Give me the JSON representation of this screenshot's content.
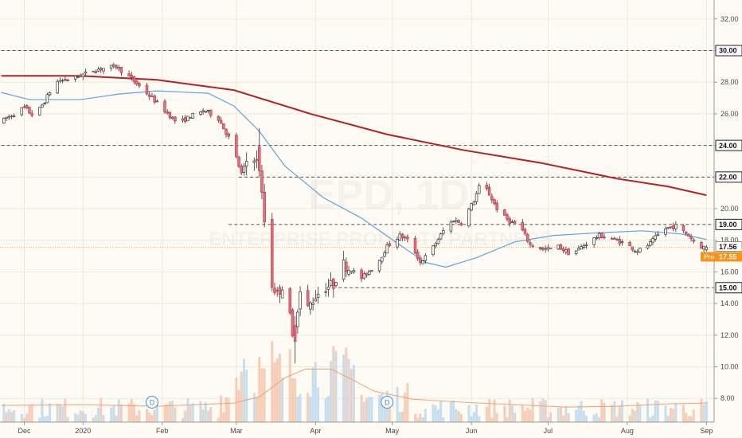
{
  "chart_data": {
    "type": "candlestick",
    "watermark": {
      "symbol": "EPD, 1D",
      "name": "ENTERPRISE PRODUCTS PARTNERS"
    },
    "y_axis": {
      "ticks": [
        8,
        10,
        12,
        14,
        16,
        18,
        20,
        22,
        24,
        26,
        28,
        30,
        32
      ],
      "min": 6.5,
      "max": 33.2
    },
    "x_axis": {
      "labels": [
        {
          "label": "Dec",
          "day": 8
        },
        {
          "label": "2020",
          "day": 31
        },
        {
          "label": "Feb",
          "day": 62
        },
        {
          "label": "Mar",
          "day": 91
        },
        {
          "label": "Apr",
          "day": 122
        },
        {
          "label": "May",
          "day": 152
        },
        {
          "label": "Jun",
          "day": 183
        },
        {
          "label": "Jul",
          "day": 213
        },
        {
          "label": "Aug",
          "day": 244
        },
        {
          "label": "Sep",
          "day": 275
        }
      ]
    },
    "levels": [
      {
        "value": 30.0,
        "label": "30.00",
        "from_day": -1
      },
      {
        "value": 24.0,
        "label": "24.00",
        "from_day": -1
      },
      {
        "value": 22.0,
        "label": "22.00",
        "from_day": 92
      },
      {
        "value": 19.0,
        "label": "19.00",
        "from_day": 88
      },
      {
        "value": 15.0,
        "label": "15.00",
        "from_day": 131
      }
    ],
    "price_labels": [
      {
        "value": 17.56,
        "label": "17.56",
        "prefix": ""
      },
      {
        "value": 17.55,
        "label": "17.55",
        "prefix": "Pre"
      }
    ],
    "colors": {
      "up": "#ffffff",
      "down": "#e8707a",
      "wick": "#333333",
      "ma_short": "#5aa6e0",
      "ma_long": "#b22222",
      "vol_up": "#bcd8ef",
      "vol_down": "#f4c6ad",
      "vol_ma": "#f0a070",
      "level": "#555555",
      "pre": "#f7931a"
    },
    "ma_short": [
      [
        -1,
        27.35
      ],
      [
        10,
        26.9
      ],
      [
        20,
        26.9
      ],
      [
        30,
        26.9
      ],
      [
        45,
        27.25
      ],
      [
        60,
        27.45
      ],
      [
        80,
        27.3
      ],
      [
        90,
        26.5
      ],
      [
        100,
        24.9
      ],
      [
        110,
        22.7
      ],
      [
        125,
        20.7
      ],
      [
        140,
        19.4
      ],
      [
        155,
        17.7
      ],
      [
        165,
        16.6
      ],
      [
        173,
        16.3
      ],
      [
        185,
        16.9
      ],
      [
        200,
        17.9
      ],
      [
        215,
        18.3
      ],
      [
        230,
        18.45
      ],
      [
        250,
        18.6
      ],
      [
        265,
        18.4
      ],
      [
        275,
        18.05
      ]
    ],
    "ma_long": [
      [
        -1,
        28.4
      ],
      [
        30,
        28.4
      ],
      [
        60,
        28.15
      ],
      [
        90,
        27.5
      ],
      [
        120,
        26.0
      ],
      [
        150,
        24.7
      ],
      [
        180,
        23.7
      ],
      [
        210,
        22.9
      ],
      [
        240,
        21.9
      ],
      [
        260,
        21.4
      ],
      [
        275,
        20.85
      ]
    ],
    "vol_ma": [
      [
        -1,
        7.55
      ],
      [
        30,
        7.6
      ],
      [
        60,
        7.5
      ],
      [
        90,
        7.7
      ],
      [
        100,
        8.1
      ],
      [
        110,
        9.3
      ],
      [
        118,
        9.85
      ],
      [
        128,
        9.85
      ],
      [
        135,
        9.3
      ],
      [
        145,
        8.45
      ],
      [
        160,
        7.95
      ],
      [
        180,
        7.75
      ],
      [
        200,
        7.6
      ],
      [
        220,
        7.45
      ],
      [
        240,
        7.5
      ],
      [
        260,
        7.65
      ],
      [
        275,
        7.7
      ]
    ],
    "anchors": [
      [
        -1,
        25.5
      ],
      [
        8,
        26.4
      ],
      [
        12,
        25.8
      ],
      [
        16,
        26.8
      ],
      [
        20,
        28.0
      ],
      [
        28,
        28.3
      ],
      [
        36,
        28.8
      ],
      [
        44,
        29.0
      ],
      [
        50,
        28.2
      ],
      [
        58,
        27.0
      ],
      [
        63,
        26.2
      ],
      [
        68,
        25.4
      ],
      [
        74,
        25.9
      ],
      [
        79,
        26.2
      ],
      [
        84,
        25.7
      ],
      [
        89,
        24.2
      ],
      [
        93,
        22.2
      ],
      [
        97,
        23.8
      ],
      [
        100,
        22.4
      ],
      [
        102,
        19.2
      ],
      [
        104,
        15.5
      ],
      [
        107,
        14.6
      ],
      [
        110,
        15.4
      ],
      [
        112,
        13.1
      ],
      [
        113,
        11.8
      ],
      [
        116,
        14.7
      ],
      [
        118,
        13.4
      ],
      [
        122,
        14.5
      ],
      [
        125,
        15.0
      ],
      [
        129,
        15.2
      ],
      [
        132,
        16.6
      ],
      [
        137,
        16.0
      ],
      [
        140,
        15.6
      ],
      [
        146,
        16.5
      ],
      [
        150,
        17.6
      ],
      [
        155,
        18.3
      ],
      [
        159,
        17.9
      ],
      [
        163,
        16.6
      ],
      [
        167,
        17.3
      ],
      [
        172,
        18.6
      ],
      [
        176,
        19.3
      ],
      [
        179,
        19.1
      ],
      [
        184,
        20.5
      ],
      [
        187,
        21.8
      ],
      [
        190,
        20.9
      ],
      [
        194,
        19.7
      ],
      [
        198,
        19.2
      ],
      [
        202,
        18.9
      ],
      [
        206,
        17.7
      ],
      [
        212,
        17.4
      ],
      [
        217,
        17.6
      ],
      [
        222,
        17.1
      ],
      [
        228,
        17.8
      ],
      [
        233,
        18.3
      ],
      [
        238,
        18.1
      ],
      [
        243,
        17.8
      ],
      [
        248,
        17.3
      ],
      [
        253,
        17.8
      ],
      [
        258,
        18.7
      ],
      [
        263,
        18.9
      ],
      [
        268,
        18.3
      ],
      [
        272,
        17.6
      ],
      [
        275,
        17.56
      ]
    ],
    "markers": [
      {
        "day": 58,
        "text": "D"
      },
      {
        "day": 150,
        "text": "D"
      }
    ]
  }
}
